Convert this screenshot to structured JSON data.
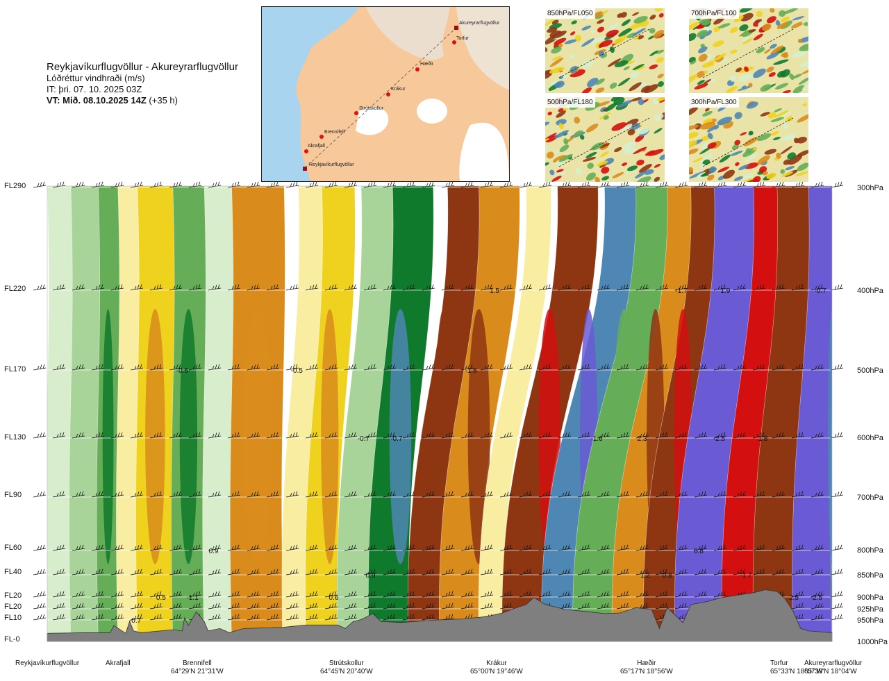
{
  "header": {
    "route": "Reykjavíkurflugvöllur - Akureyrarflugvöllur",
    "field": "Lóðréttur vindhraði (m/s)",
    "issue_time": "IT: þri. 07. 10. 2025 03Z",
    "valid_time": "VT: Mið. 08.10.2025 14Z",
    "lead": "(+35 h)"
  },
  "map": {
    "stations": [
      {
        "name": "Akureyrarflugvöllur"
      },
      {
        "name": "Torfur"
      },
      {
        "name": "Hæðir"
      },
      {
        "name": "Krákur"
      },
      {
        "name": "Strútskollur"
      },
      {
        "name": "Brennifell"
      },
      {
        "name": "Akrafjall"
      },
      {
        "name": "Reykjavíkurflugvöllur"
      }
    ]
  },
  "thumbnails": [
    {
      "label": "850hPa/FL050"
    },
    {
      "label": "700hPa/FL100"
    },
    {
      "label": "500hPa/FL180"
    },
    {
      "label": "300hPa/FL300"
    }
  ],
  "colors": {
    "terrain": "#7f7f7f",
    "strong_up": "#d40f0f",
    "up_brown": "#8e3512",
    "up_orange": "#d98c1c",
    "up_yellow": "#eed21e",
    "weak_up": "#f8eda0",
    "weak_down": "#d7edcc",
    "down_green": "#65ad57",
    "down_darkgreen": "#0f7a2c",
    "down_steel": "#4e86b4",
    "strong_down": "#6a5ad4"
  },
  "chart_data": {
    "type": "heatmap",
    "title": "Lóðréttur vindhraði (m/s)",
    "xlabel": "",
    "ylabel": "",
    "y_left_ticks": [
      "FL290",
      "FL220",
      "FL170",
      "FL130",
      "FL90",
      "FL60",
      "FL40",
      "FL20",
      "FL20",
      "FL10",
      "FL-0"
    ],
    "y_right_ticks": [
      "300hPa",
      "400hPa",
      "500hPa",
      "600hPa",
      "700hPa",
      "800hPa",
      "850hPa",
      "900hPa",
      "925hPa",
      "950hPa",
      "1000hPa"
    ],
    "pressure_levels_hpa": [
      300,
      400,
      500,
      600,
      700,
      800,
      850,
      900,
      925,
      950,
      1000
    ],
    "x_locations": [
      {
        "name": "Reykjavíkurflugvöllur",
        "coord": ""
      },
      {
        "name": "Akrafjall",
        "coord": ""
      },
      {
        "name": "Brennifell",
        "coord": "64°29'N 21°31'W"
      },
      {
        "name": "Strútskollur",
        "coord": "64°45'N 20°40'W"
      },
      {
        "name": "Krákur",
        "coord": "65°00'N 19°46'W"
      },
      {
        "name": "Hæðir",
        "coord": "65°17'N 18°56'W"
      },
      {
        "name": "Torfur",
        "coord": "65°33'N 18°07'W"
      },
      {
        "name": "Akureyrarflugvöllur",
        "coord": "65°39'N 18°04'W"
      }
    ],
    "x_range": [
      0,
      1
    ],
    "band_positions": [
      0.0,
      0.03,
      0.065,
      0.09,
      0.115,
      0.16,
      0.2,
      0.235,
      0.3,
      0.33,
      0.37,
      0.41,
      0.46,
      0.5,
      0.55,
      0.58,
      0.63,
      0.67,
      0.72,
      0.76,
      0.8,
      0.86,
      0.9,
      0.95,
      1.0
    ],
    "band_values": [
      -0.2,
      -0.4,
      -0.8,
      0.3,
      0.6,
      -0.7,
      -0.3,
      0.7,
      0.4,
      0.6,
      -0.4,
      -1.0,
      1.0,
      0.8,
      0.4,
      1.4,
      -1.4,
      -0.6,
      0.9,
      1.2,
      -1.6,
      1.6,
      1.1,
      -1.6,
      -1.0
    ],
    "tilt_per_height": [
      0,
      0,
      0,
      0,
      0,
      0,
      0,
      0,
      0.02,
      0.02,
      0.03,
      0.03,
      0.05,
      0.05,
      0.06,
      0.07,
      0.08,
      0.08,
      0.07,
      0.06,
      0.05,
      0.04,
      0.03,
      0.02,
      0
    ],
    "annotations": [
      {
        "text": "-0.6",
        "x": 0.172,
        "level_hpa": 500
      },
      {
        "text": "-0.5",
        "x": 0.318,
        "level_hpa": 500
      },
      {
        "text": "-0.7",
        "x": 0.403,
        "level_hpa": 600
      },
      {
        "text": "-0.7",
        "x": 0.445,
        "level_hpa": 600
      },
      {
        "text": "1.5",
        "x": 0.57,
        "level_hpa": 400
      },
      {
        "text": "-1.6",
        "x": 0.54,
        "level_hpa": 500
      },
      {
        "text": "-1.6",
        "x": 0.7,
        "level_hpa": 600
      },
      {
        "text": "2.3",
        "x": 0.758,
        "level_hpa": 600
      },
      {
        "text": "-2.5",
        "x": 0.856,
        "level_hpa": 600
      },
      {
        "text": "1.8",
        "x": 0.912,
        "level_hpa": 600
      },
      {
        "text": "-1.7",
        "x": 0.808,
        "level_hpa": 400
      },
      {
        "text": "1.9",
        "x": 0.864,
        "level_hpa": 400
      },
      {
        "text": "-0.7",
        "x": 0.985,
        "level_hpa": 400
      },
      {
        "text": "0.9",
        "x": 0.212,
        "level_hpa": 800
      },
      {
        "text": "0.9",
        "x": 0.412,
        "level_hpa": 850
      },
      {
        "text": "0.5",
        "x": 0.145,
        "level_hpa": 900
      },
      {
        "text": "-1.1",
        "x": 0.185,
        "level_hpa": 900
      },
      {
        "text": "0.6",
        "x": 0.365,
        "level_hpa": 900
      },
      {
        "text": "-0.7",
        "x": 0.112,
        "level_hpa": 950
      },
      {
        "text": "1.2",
        "x": 0.762,
        "level_hpa": 850
      },
      {
        "text": "0.8",
        "x": 0.79,
        "level_hpa": 850
      },
      {
        "text": "0.8",
        "x": 0.83,
        "level_hpa": 800
      },
      {
        "text": "-1.7",
        "x": 0.89,
        "level_hpa": 850
      },
      {
        "text": "-2.5",
        "x": 0.95,
        "level_hpa": 900
      },
      {
        "text": "-2.5",
        "x": 0.98,
        "level_hpa": 900
      }
    ],
    "terrain_elevation_norm": [
      [
        0.0,
        0.02
      ],
      [
        0.05,
        0.03
      ],
      [
        0.08,
        0.03
      ],
      [
        0.085,
        0.15
      ],
      [
        0.1,
        0.02
      ],
      [
        0.105,
        0.22
      ],
      [
        0.11,
        0.06
      ],
      [
        0.12,
        0.03
      ],
      [
        0.16,
        0.08
      ],
      [
        0.172,
        0.06
      ],
      [
        0.175,
        0.28
      ],
      [
        0.18,
        0.15
      ],
      [
        0.19,
        0.38
      ],
      [
        0.2,
        0.22
      ],
      [
        0.205,
        0.06
      ],
      [
        0.22,
        0.1
      ],
      [
        0.232,
        0.03
      ],
      [
        0.25,
        0.1
      ],
      [
        0.3,
        0.12
      ],
      [
        0.33,
        0.16
      ],
      [
        0.37,
        0.16
      ],
      [
        0.38,
        0.1
      ],
      [
        0.39,
        0.22
      ],
      [
        0.4,
        0.25
      ],
      [
        0.415,
        0.35
      ],
      [
        0.425,
        0.22
      ],
      [
        0.45,
        0.2
      ],
      [
        0.49,
        0.24
      ],
      [
        0.53,
        0.26
      ],
      [
        0.56,
        0.3
      ],
      [
        0.58,
        0.36
      ],
      [
        0.6,
        0.46
      ],
      [
        0.61,
        0.5
      ],
      [
        0.62,
        0.62
      ],
      [
        0.635,
        0.5
      ],
      [
        0.66,
        0.42
      ],
      [
        0.69,
        0.38
      ],
      [
        0.71,
        0.35
      ],
      [
        0.73,
        0.36
      ],
      [
        0.75,
        0.45
      ],
      [
        0.77,
        0.42
      ],
      [
        0.78,
        0.1
      ],
      [
        0.79,
        0.45
      ],
      [
        0.81,
        0.2
      ],
      [
        0.82,
        0.5
      ],
      [
        0.84,
        0.55
      ],
      [
        0.86,
        0.62
      ],
      [
        0.88,
        0.66
      ],
      [
        0.9,
        0.7
      ],
      [
        0.915,
        0.75
      ],
      [
        0.93,
        0.72
      ],
      [
        0.94,
        0.6
      ],
      [
        0.95,
        0.4
      ],
      [
        0.96,
        0.1
      ],
      [
        0.97,
        0.06
      ],
      [
        1.0,
        0.03
      ]
    ],
    "grid": true,
    "legend": "none"
  }
}
